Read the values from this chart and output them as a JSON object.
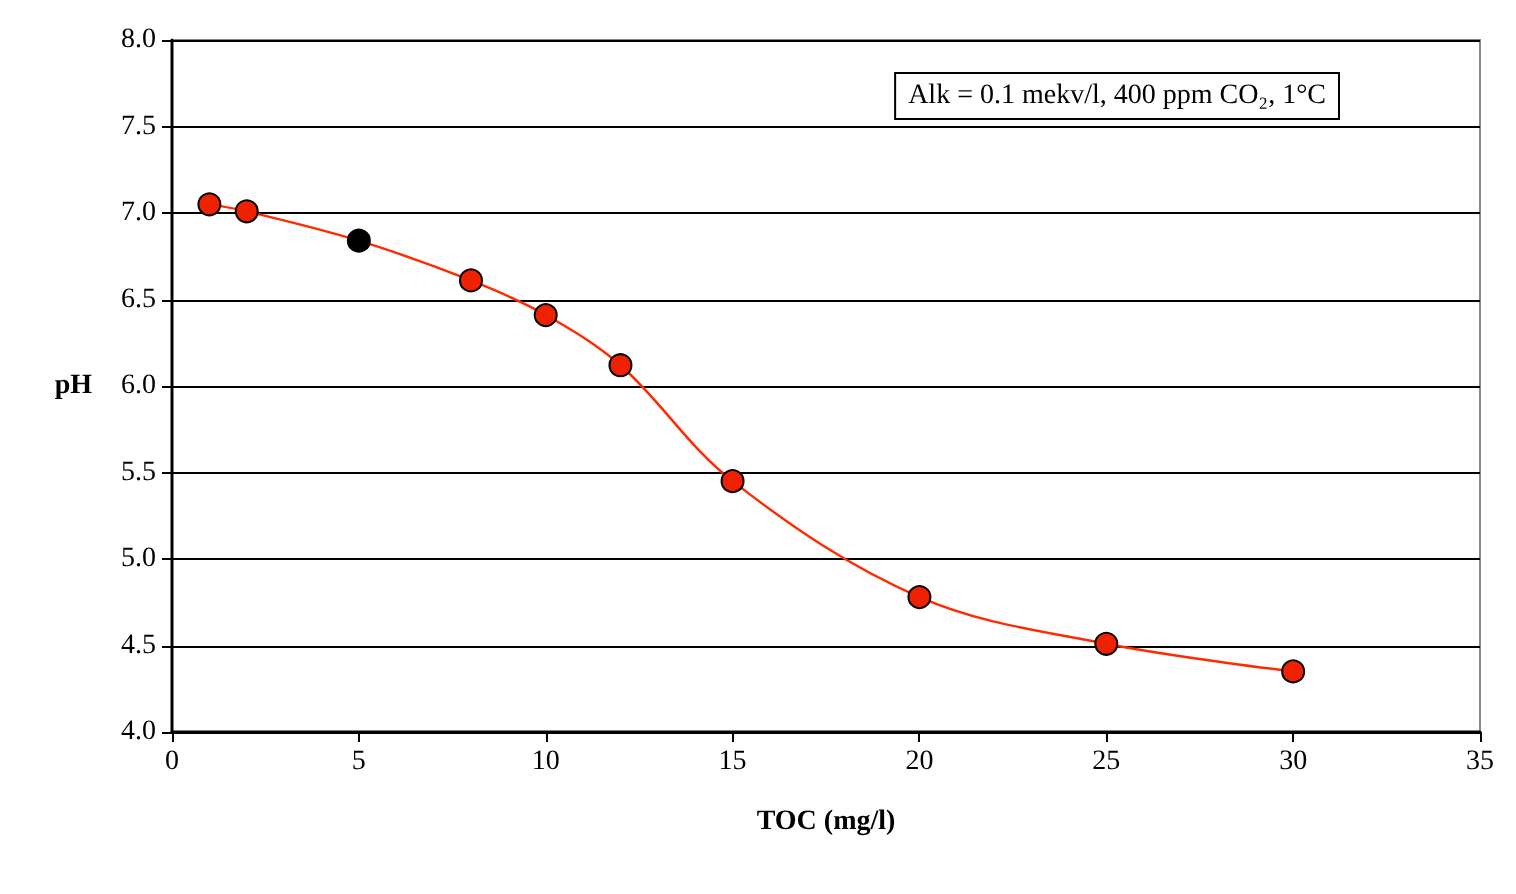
{
  "chart_data": {
    "type": "line",
    "xlabel": "TOC (mg/l)",
    "ylabel": "pH",
    "annotations": [
      "Alk = 0.1 mekv/l, 400 ppm CO₂, 1°C"
    ],
    "x": [
      1,
      2,
      5,
      8,
      10,
      12,
      15,
      20,
      25,
      30
    ],
    "series": [
      {
        "color": "#ff2a00",
        "colors": [
          "#ee2200",
          "#ee2200",
          "#000000",
          "#ee2200",
          "#ee2200",
          "#ee2200",
          "#ee2200",
          "#ee2200",
          "#ee2200",
          "#ee2200"
        ],
        "values": [
          7.05,
          7.01,
          6.84,
          6.61,
          6.41,
          6.12,
          5.45,
          4.78,
          4.51,
          4.35
        ]
      }
    ],
    "xlim": [
      0,
      35
    ],
    "xticks": [
      0,
      5,
      10,
      15,
      20,
      25,
      30,
      35
    ],
    "ylim": [
      4,
      8
    ],
    "yticks": [
      {
        "value": 4,
        "label": "4.0"
      },
      4.5,
      {
        "value": 5,
        "label": "5.0"
      },
      5.5,
      {
        "value": 6,
        "label": "6.0"
      },
      6.5,
      {
        "value": 7,
        "label": "7.0"
      },
      7.5,
      {
        "value": 8,
        "label": "8.0"
      }
    ],
    "grid": "y",
    "marker": "circle",
    "line_style": "solid"
  }
}
